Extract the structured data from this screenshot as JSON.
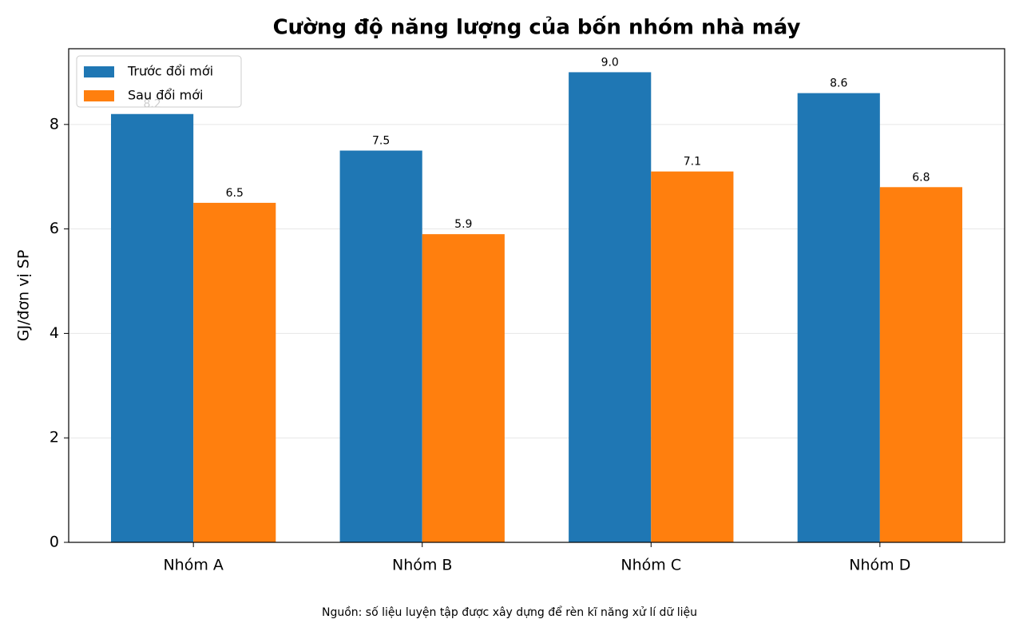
{
  "chart_data": {
    "type": "bar",
    "title": "Cường độ năng lượng của bốn nhóm nhà máy",
    "y_label": "GJ/đơn vị SP",
    "note": "Nguồn: số liệu luyện tập được xây dựng để rèn kĩ năng xử lí dữ liệu",
    "categories": [
      "Nhóm A",
      "Nhóm B",
      "Nhóm C",
      "Nhóm D"
    ],
    "series": [
      {
        "name": "Trước đổi mới",
        "color": "#1f77b4",
        "values": [
          8.2,
          7.5,
          9.0,
          8.6
        ],
        "value_labels": [
          "8.2",
          "7.5",
          "9.0",
          "8.6"
        ]
      },
      {
        "name": "Sau đổi mới",
        "color": "#ff7f0e",
        "values": [
          6.5,
          5.9,
          7.1,
          6.8
        ],
        "value_labels": [
          "6.5",
          "5.9",
          "7.1",
          "6.8"
        ]
      }
    ],
    "ylim": [
      0,
      9.45
    ],
    "yticks": [
      0,
      2,
      4,
      6,
      8
    ],
    "grid": true,
    "legend": "upper-left"
  }
}
